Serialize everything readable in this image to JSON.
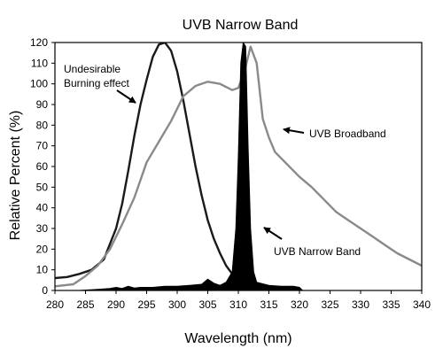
{
  "chart_data": {
    "type": "area",
    "title": "UVB Narrow Band",
    "xlabel": "Wavelength (nm)",
    "ylabel": "Relative Percent (%)",
    "xlim": [
      280,
      340
    ],
    "ylim": [
      0,
      120
    ],
    "x_ticks": [
      "280",
      "285",
      "290",
      "295",
      "300",
      "305",
      "310",
      "315",
      "320",
      "325",
      "330",
      "335",
      "340"
    ],
    "y_ticks": [
      "0",
      "10",
      "20",
      "30",
      "40",
      "50",
      "60",
      "70",
      "80",
      "90",
      "100",
      "110",
      "120"
    ],
    "grid": false,
    "series": [
      {
        "name": "Undesirable Burning effect",
        "color": "#1a1a1a",
        "style": "line",
        "points": [
          [
            280,
            6
          ],
          [
            282,
            6.5
          ],
          [
            284,
            8
          ],
          [
            286,
            10
          ],
          [
            288,
            15
          ],
          [
            290,
            30
          ],
          [
            291,
            42
          ],
          [
            292,
            58
          ],
          [
            293,
            75
          ],
          [
            294,
            90
          ],
          [
            295,
            102
          ],
          [
            296,
            113
          ],
          [
            297,
            119
          ],
          [
            298,
            120
          ],
          [
            299,
            116
          ],
          [
            300,
            106
          ],
          [
            301,
            92
          ],
          [
            302,
            76
          ],
          [
            303,
            60
          ],
          [
            304,
            46
          ],
          [
            305,
            34
          ],
          [
            306,
            25
          ],
          [
            307,
            18
          ],
          [
            308,
            12
          ],
          [
            309,
            8
          ],
          [
            310,
            5
          ],
          [
            311,
            3
          ],
          [
            312,
            1
          ]
        ]
      },
      {
        "name": "UVB Broadband",
        "color": "#8a8a8a",
        "style": "line",
        "points": [
          [
            280,
            2
          ],
          [
            283,
            3
          ],
          [
            285,
            7
          ],
          [
            287,
            12
          ],
          [
            289,
            20
          ],
          [
            291,
            32
          ],
          [
            293,
            45
          ],
          [
            295,
            62
          ],
          [
            297,
            72
          ],
          [
            299,
            82
          ],
          [
            301,
            94
          ],
          [
            303,
            99
          ],
          [
            305,
            101
          ],
          [
            307,
            100
          ],
          [
            309,
            97
          ],
          [
            310,
            98
          ],
          [
            311,
            106
          ],
          [
            312,
            118
          ],
          [
            313,
            110
          ],
          [
            314,
            83
          ],
          [
            315,
            74
          ],
          [
            316,
            67
          ],
          [
            317,
            64
          ],
          [
            318,
            61
          ],
          [
            320,
            55
          ],
          [
            322,
            50
          ],
          [
            324,
            44
          ],
          [
            326,
            38
          ],
          [
            328,
            34
          ],
          [
            330,
            30
          ],
          [
            332,
            26
          ],
          [
            334,
            22
          ],
          [
            336,
            18
          ],
          [
            338,
            15
          ],
          [
            340,
            12
          ]
        ]
      },
      {
        "name": "UVB Narrow Band",
        "color": "#000000",
        "style": "filled",
        "points": [
          [
            284,
            0
          ],
          [
            287,
            0.5
          ],
          [
            289,
            1
          ],
          [
            290,
            1.5
          ],
          [
            291,
            1
          ],
          [
            292,
            2
          ],
          [
            293,
            1.2
          ],
          [
            294,
            1.5
          ],
          [
            296,
            1.5
          ],
          [
            298,
            2
          ],
          [
            300,
            2
          ],
          [
            302,
            2.5
          ],
          [
            304,
            3
          ],
          [
            305,
            5.5
          ],
          [
            306,
            3.5
          ],
          [
            307,
            2.5
          ],
          [
            308,
            4
          ],
          [
            309,
            9
          ],
          [
            309.6,
            30
          ],
          [
            310,
            65
          ],
          [
            310.4,
            110
          ],
          [
            310.8,
            125
          ],
          [
            311.2,
            118
          ],
          [
            311.6,
            70
          ],
          [
            312,
            30
          ],
          [
            312.5,
            9
          ],
          [
            313,
            4
          ],
          [
            315,
            2.5
          ],
          [
            317,
            2
          ],
          [
            319,
            2
          ],
          [
            320,
            1.5
          ],
          [
            320.5,
            0
          ]
        ]
      }
    ],
    "annotations": {
      "burning_line1": "Undesirable",
      "burning_line2": "Burning effect",
      "broadband": "UVB Broadband",
      "narrowband": "UVB Narrow Band"
    }
  }
}
